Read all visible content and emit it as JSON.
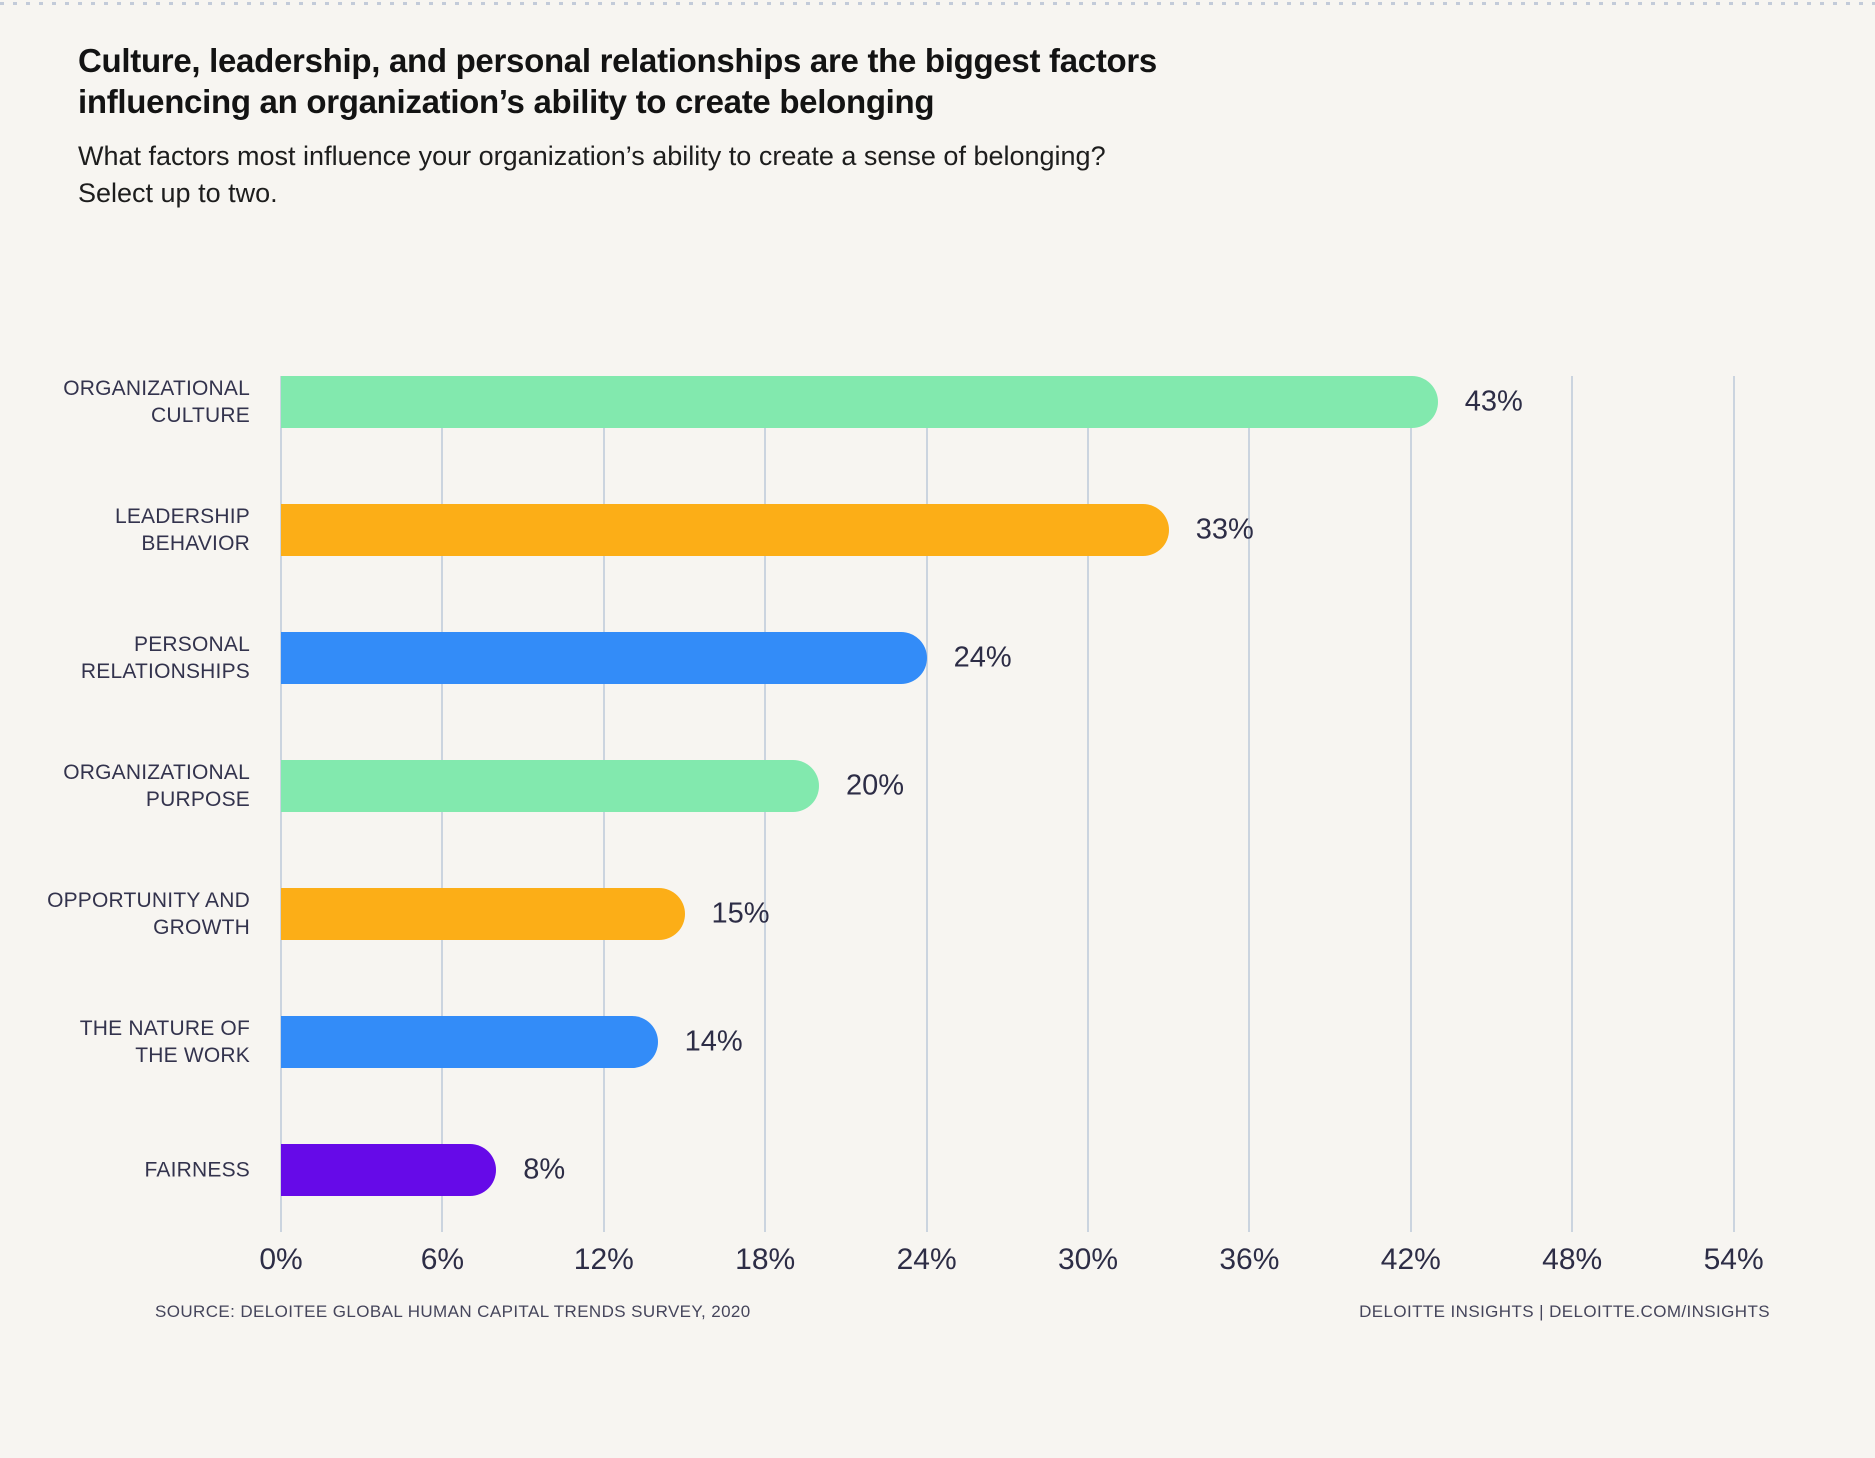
{
  "page": {
    "title_lines": [
      "Culture, leadership, and personal relationships are the biggest factors",
      "influencing an organization’s ability to create belonging"
    ],
    "subtitle_lines": [
      "What factors most influence your organization’s ability to create a sense of belonging?",
      "Select up to two."
    ],
    "footer_left": "SOURCE: DELOITEE GLOBAL HUMAN CAPITAL TRENDS SURVEY, 2020",
    "footer_right": "DELOITTE INSIGHTS | DELOITTE.COM/INSIGHTS"
  },
  "colors": {
    "background": "#F7F5F1",
    "gridline": "#CBD4DF",
    "text_dark": "#2D2D46",
    "category_label": "#33334D",
    "footer_text": "#45455B",
    "green": "#82E9AE",
    "orange": "#FCAE17",
    "blue": "#338CF8",
    "purple": "#660AE8"
  },
  "chart_data": {
    "type": "bar",
    "orientation": "horizontal",
    "title": "Culture, leadership, and personal relationships are the biggest factors influencing an organization’s ability to create belonging",
    "subtitle": "What factors most influence your organization’s ability to create a sense of belonging? Select up to two.",
    "categories": [
      "ORGANIZATIONAL CULTURE",
      "LEADERSHIP BEHAVIOR",
      "PERSONAL RELATIONSHIPS",
      "ORGANIZATIONAL PURPOSE",
      "OPPORTUNITY AND GROWTH",
      "THE NATURE OF THE WORK",
      "FAIRNESS"
    ],
    "category_lines": [
      [
        "ORGANIZATIONAL",
        "CULTURE"
      ],
      [
        "LEADERSHIP",
        "BEHAVIOR"
      ],
      [
        "PERSONAL",
        "RELATIONSHIPS"
      ],
      [
        "ORGANIZATIONAL",
        "PURPOSE"
      ],
      [
        "OPPORTUNITY AND",
        "GROWTH"
      ],
      [
        "THE NATURE OF",
        "THE WORK"
      ],
      [
        "FAIRNESS"
      ]
    ],
    "values": [
      43,
      33,
      24,
      20,
      15,
      14,
      8
    ],
    "value_labels": [
      "43%",
      "33%",
      "24%",
      "20%",
      "15%",
      "14%",
      "8%"
    ],
    "bar_colors": [
      "#82E9AE",
      "#FCAE17",
      "#338CF8",
      "#82E9AE",
      "#FCAE17",
      "#338CF8",
      "#660AE8"
    ],
    "xlabel": "",
    "ylabel": "",
    "xlim": [
      0,
      54
    ],
    "xticks": [
      0,
      6,
      12,
      18,
      24,
      30,
      36,
      42,
      48,
      54
    ],
    "xtick_labels": [
      "0%",
      "6%",
      "12%",
      "18%",
      "24%",
      "30%",
      "36%",
      "42%",
      "48%",
      "54%"
    ],
    "grid": "vertical",
    "legend": "none"
  }
}
